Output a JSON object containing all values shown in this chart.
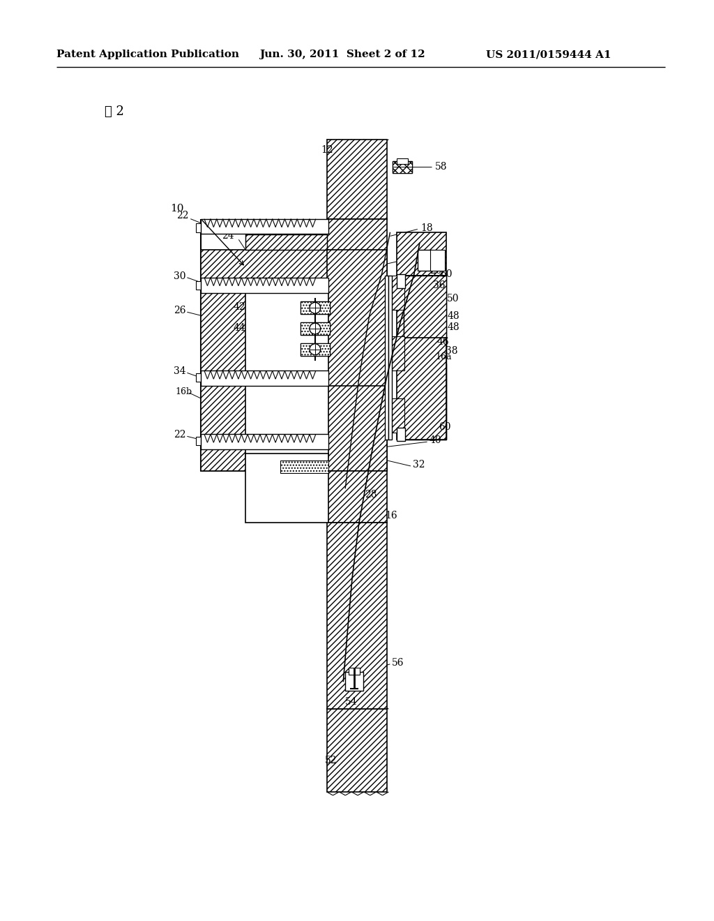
{
  "title_left": "Patent Application Publication",
  "title_mid": "Jun. 30, 2011  Sheet 2 of 12",
  "title_right": "US 2011/0159444 A1",
  "fig_label": "図 2",
  "bg_color": "#ffffff"
}
